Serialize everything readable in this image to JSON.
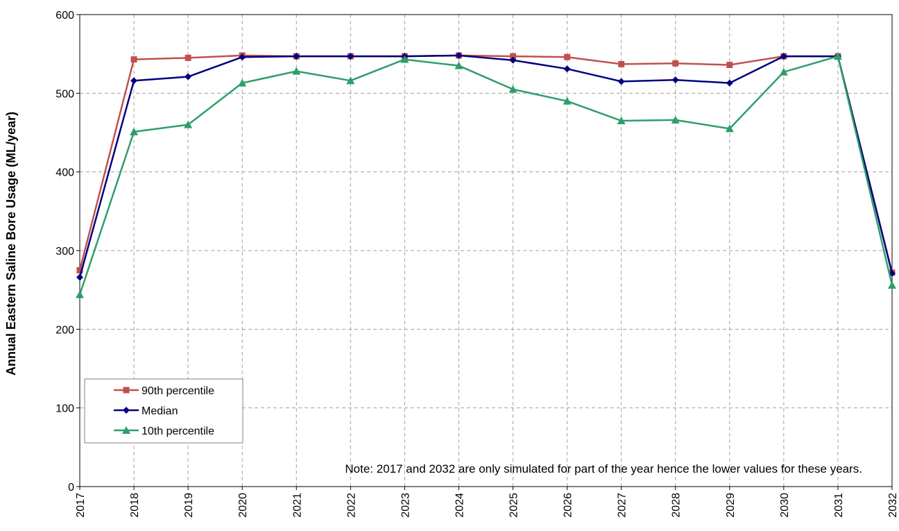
{
  "chart_data": {
    "type": "line",
    "ylabel": "Annual Eastern Saline Bore Usage (ML/year)",
    "xlabel": "",
    "x": [
      "2017",
      "2018",
      "2019",
      "2020",
      "2021",
      "2022",
      "2023",
      "2024",
      "2025",
      "2026",
      "2027",
      "2028",
      "2029",
      "2030",
      "2031",
      "2032"
    ],
    "ylim": [
      0,
      600
    ],
    "yticks": [
      "0",
      "100",
      "200",
      "300",
      "400",
      "500",
      "600"
    ],
    "grid": true,
    "legend_position": "bottom-left",
    "series": [
      {
        "name": "90th percentile",
        "color": "#c0504d",
        "marker": "square",
        "values": [
          275,
          543,
          545,
          548,
          547,
          547,
          547,
          548,
          547,
          546,
          537,
          538,
          536,
          547,
          547,
          272
        ]
      },
      {
        "name": "Median",
        "color": "#000080",
        "marker": "diamond",
        "values": [
          266,
          516,
          521,
          546,
          547,
          547,
          547,
          548,
          542,
          531,
          515,
          517,
          513,
          547,
          547,
          271
        ]
      },
      {
        "name": "10th percentile",
        "color": "#2e9e6a",
        "marker": "triangle",
        "values": [
          244,
          451,
          460,
          513,
          528,
          516,
          543,
          535,
          505,
          490,
          465,
          466,
          455,
          527,
          547,
          256
        ]
      }
    ],
    "annotation": "Note: 2017 and 2032 are only simulated for part of the year hence the lower values for these years."
  }
}
